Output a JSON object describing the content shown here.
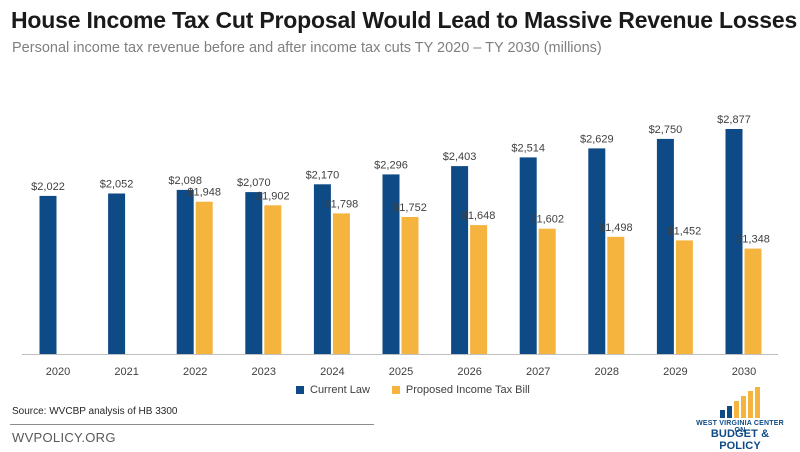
{
  "header": {
    "title": "House Income Tax Cut Proposal Would Lead to Massive Revenue Losses",
    "subtitle": "Personal income tax revenue before and after income tax cuts TY 2020 – TY 2030 (millions)"
  },
  "footer": {
    "source": "Source: WVCBP analysis of HB 3300",
    "site": "WVPOLICY.ORG"
  },
  "logo": {
    "top_text": "WEST VIRGINIA CENTER ON",
    "main_text": "BUDGET & POLICY"
  },
  "colors": {
    "current_law": "#0e4a86",
    "proposed": "#f4b43d",
    "label": "#404040"
  },
  "chart_data": {
    "type": "bar",
    "categories": [
      "2020",
      "2021",
      "2022",
      "2023",
      "2024",
      "2025",
      "2026",
      "2027",
      "2028",
      "2029",
      "2030"
    ],
    "series": [
      {
        "name": "Current Law",
        "values": [
          2022,
          2052,
          2098,
          2070,
          2170,
          2296,
          2403,
          2514,
          2629,
          2750,
          2877
        ],
        "labels": [
          "$2,022",
          "$2,052",
          "$2,098",
          "$2,070",
          "$2,170",
          "$2,296",
          "$2,403",
          "$2,514",
          "$2,629",
          "$2,750",
          "$2,877"
        ]
      },
      {
        "name": "Proposed Income Tax Bill",
        "values": [
          null,
          null,
          1948,
          1902,
          1798,
          1752,
          1648,
          1602,
          1498,
          1452,
          1348
        ],
        "labels": [
          null,
          null,
          "$1,948",
          "$1,902",
          "$1,798",
          "$1,752",
          "$1,648",
          "$1,602",
          "$1,498",
          "$1,452",
          "$1,348"
        ]
      }
    ],
    "ylim": [
      0,
      3000
    ],
    "grid": false,
    "legend_position": "bottom"
  }
}
